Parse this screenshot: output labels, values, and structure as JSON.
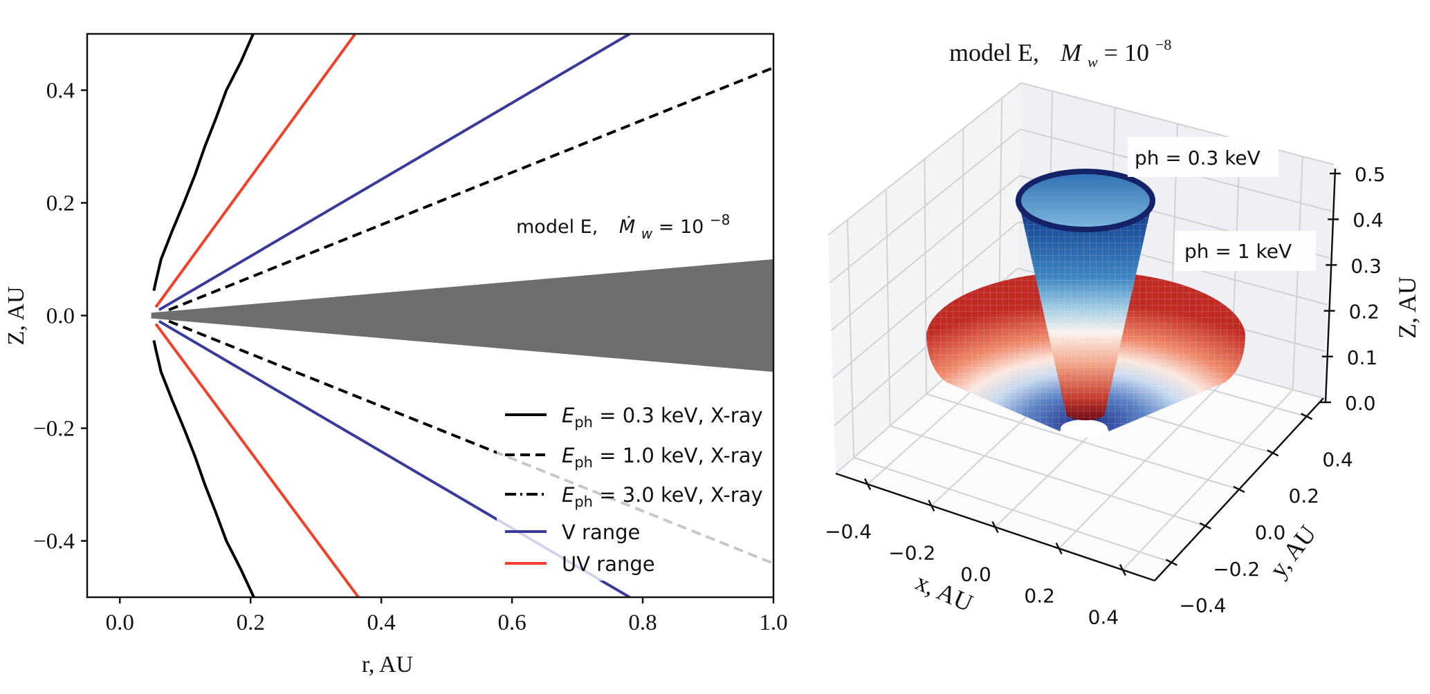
{
  "left_title": {
    "prefix": "model E,",
    "symbol": "Ṁ",
    "sub": "w",
    "eq": " = 10",
    "exp": "−8"
  },
  "right_title": {
    "prefix": "model E,",
    "symbol": "M",
    "sub": "w",
    "eq": "= 10",
    "exp": "−8"
  },
  "legend": [
    {
      "symbol": "E",
      "sub": "ph",
      "text": " = 0.3 keV, X-ray"
    },
    {
      "symbol": "E",
      "sub": "ph",
      "text": " = 1.0 keV, X-ray"
    },
    {
      "symbol": "E",
      "sub": "ph",
      "text": " = 3.0 keV, X-ray"
    },
    {
      "symbol": "",
      "sub": "",
      "text": "V range"
    },
    {
      "symbol": "",
      "sub": "",
      "text": "UV range"
    }
  ],
  "chart_data": [
    {
      "type": "line",
      "xlabel": "r, AU",
      "ylabel": "Z, AU",
      "xlim": [
        -0.05,
        1.0
      ],
      "ylim": [
        -0.5,
        0.5
      ],
      "xticks": [
        "0.0",
        "0.2",
        "0.4",
        "0.6",
        "0.8",
        "1.0"
      ],
      "yticks": [
        "−0.4",
        "−0.2",
        "0.0",
        "0.2",
        "0.4"
      ],
      "xtick_values": [
        0,
        0.2,
        0.4,
        0.6,
        0.8,
        1.0
      ],
      "ytick_values": [
        -0.4,
        -0.2,
        0,
        0.2,
        0.4
      ],
      "grid": false,
      "legend_position": "lower-right",
      "series": [
        {
          "name": "E_ph = 0.3 keV, X-ray",
          "color": "#000000",
          "style": "solid",
          "upper": [
            [
              0.052,
              0.044
            ],
            [
              0.055,
              0.06
            ],
            [
              0.063,
              0.1
            ],
            [
              0.08,
              0.15
            ],
            [
              0.098,
              0.2
            ],
            [
              0.115,
              0.25
            ],
            [
              0.13,
              0.3
            ],
            [
              0.147,
              0.35
            ],
            [
              0.163,
              0.4
            ],
            [
              0.185,
              0.45
            ],
            [
              0.204,
              0.5
            ]
          ],
          "lower": [
            [
              0.052,
              -0.044
            ],
            [
              0.055,
              -0.06
            ],
            [
              0.063,
              -0.1
            ],
            [
              0.08,
              -0.15
            ],
            [
              0.098,
              -0.2
            ],
            [
              0.115,
              -0.25
            ],
            [
              0.13,
              -0.3
            ],
            [
              0.147,
              -0.35
            ],
            [
              0.163,
              -0.4
            ],
            [
              0.185,
              -0.45
            ],
            [
              0.205,
              -0.5
            ]
          ]
        },
        {
          "name": "E_ph = 1.0 keV, X-ray",
          "color": "#000000",
          "style": "dashed",
          "upper": [
            [
              0.075,
              0.01
            ],
            [
              1.0,
              0.44
            ]
          ],
          "lower": [
            [
              0.075,
              -0.01
            ],
            [
              1.0,
              -0.44
            ]
          ]
        },
        {
          "name": "E_ph = 3.0 keV, X-ray",
          "color": "#000000",
          "style": "dashdot",
          "upper": [],
          "lower": []
        },
        {
          "name": "V range",
          "color": "#3a3a9a",
          "style": "solid",
          "upper": [
            [
              0.06,
              0.01
            ],
            [
              0.78,
              0.5
            ]
          ],
          "lower": [
            [
              0.06,
              -0.01
            ],
            [
              0.78,
              -0.5
            ]
          ]
        },
        {
          "name": "UV range",
          "color": "#f0412a",
          "style": "solid",
          "upper": [
            [
              0.055,
              0.015
            ],
            [
              0.36,
              0.5
            ]
          ],
          "lower": [
            [
              0.055,
              -0.015
            ],
            [
              0.365,
              -0.5
            ]
          ]
        }
      ],
      "disk": {
        "color": "#6d6e70",
        "polygon": [
          [
            0.048,
            0.005
          ],
          [
            1.0,
            0.1
          ],
          [
            1.0,
            -0.1
          ],
          [
            0.048,
            -0.005
          ]
        ]
      },
      "annotation": "model E, Ṁw = 10^-8"
    },
    {
      "type": "surface3d",
      "xlabel": "x, AU",
      "ylabel": "y, AU",
      "zlabel": "Z, AU",
      "xlim": [
        -0.5,
        0.5
      ],
      "ylim": [
        -0.5,
        0.5
      ],
      "zlim": [
        0.0,
        0.5
      ],
      "xticks": [
        "−0.4",
        "−0.2",
        "0.0",
        "0.2",
        "0.4"
      ],
      "yticks": [
        "−0.4",
        "−0.2",
        "0.0",
        "0.2",
        "0.4"
      ],
      "zticks": [
        "0.0",
        "0.1",
        "0.2",
        "0.3",
        "0.4",
        "0.5"
      ],
      "xtick_values": [
        -0.4,
        -0.2,
        0,
        0.2,
        0.4
      ],
      "ytick_values": [
        -0.4,
        -0.2,
        0,
        0.2,
        0.4
      ],
      "ztick_values": [
        0,
        0.1,
        0.2,
        0.3,
        0.4,
        0.5
      ],
      "colormap": "RdBu",
      "surfaces": [
        {
          "label": "ph = 0.3 keV",
          "shape": "narrow cone"
        },
        {
          "label": "ph = 1 keV",
          "shape": "wide cone"
        }
      ]
    }
  ]
}
